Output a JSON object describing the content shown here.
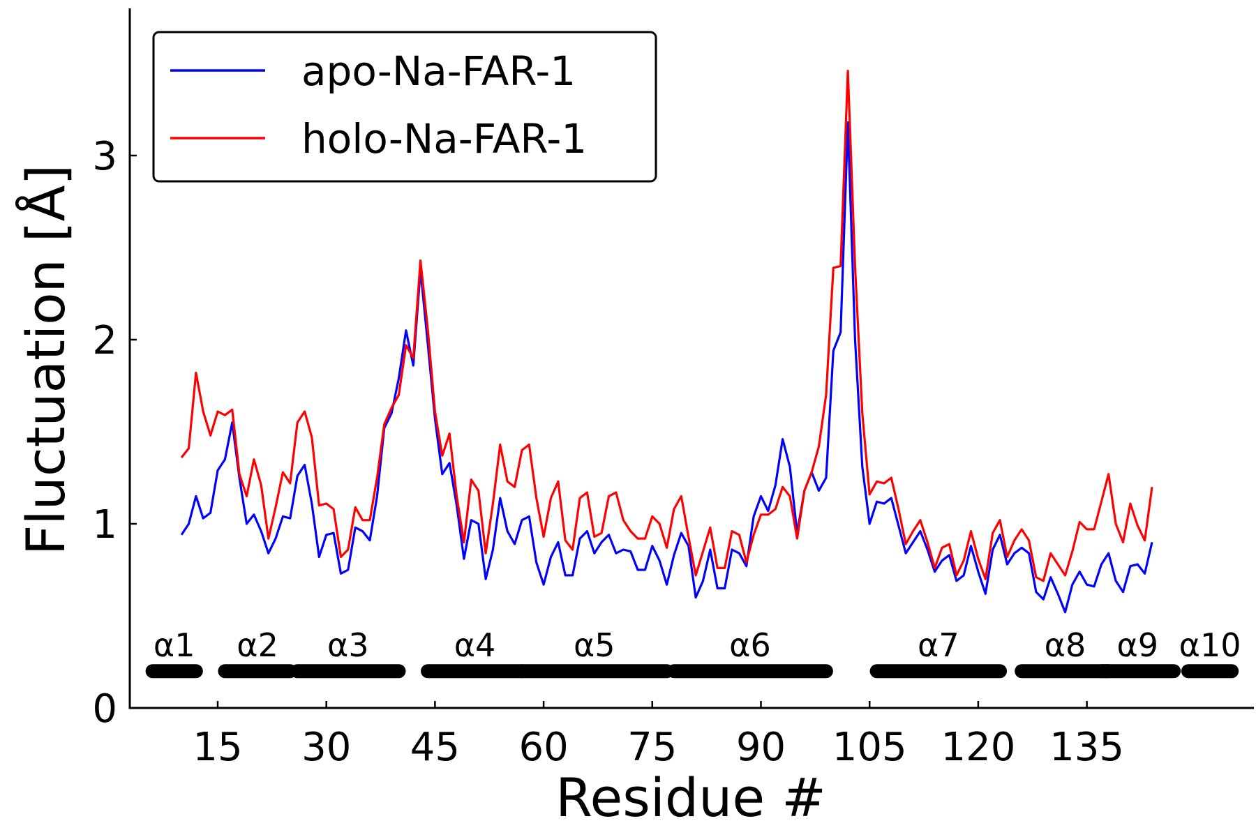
{
  "chart_data": {
    "type": "line",
    "title": "",
    "xlabel": "Residue #",
    "ylabel": "Fluctuation [Å]",
    "xlim": [
      0,
      147
    ],
    "ylim": [
      0,
      3.8
    ],
    "xticks": [
      15,
      30,
      45,
      60,
      75,
      90,
      105,
      120,
      135
    ],
    "xtick_labels": [
      "15",
      "30",
      "45",
      "60",
      "75",
      "90",
      "105",
      "120",
      "135"
    ],
    "yticks": [
      0,
      1,
      2,
      3
    ],
    "ytick_labels": [
      "0",
      "1",
      "2",
      "3"
    ],
    "grid": false,
    "legend_position": "top-left",
    "x_start": 10,
    "series": [
      {
        "name": "apo-Na-FAR-1",
        "color": "#0000ff",
        "values": [
          0.94,
          1.0,
          1.15,
          1.03,
          1.06,
          1.29,
          1.35,
          1.55,
          1.25,
          1.0,
          1.05,
          0.96,
          0.84,
          0.92,
          1.04,
          1.03,
          1.26,
          1.32,
          1.11,
          0.82,
          0.94,
          0.95,
          0.73,
          0.75,
          0.98,
          0.96,
          0.91,
          1.15,
          1.52,
          1.6,
          1.79,
          2.05,
          1.86,
          2.38,
          1.98,
          1.57,
          1.27,
          1.33,
          1.1,
          0.81,
          1.02,
          1.0,
          0.7,
          0.86,
          1.14,
          0.96,
          0.89,
          1.02,
          1.04,
          0.79,
          0.67,
          0.82,
          0.9,
          0.72,
          0.72,
          0.92,
          0.96,
          0.84,
          0.9,
          0.94,
          0.84,
          0.86,
          0.85,
          0.75,
          0.75,
          0.88,
          0.8,
          0.67,
          0.83,
          0.95,
          0.88,
          0.6,
          0.69,
          0.86,
          0.65,
          0.65,
          0.86,
          0.84,
          0.77,
          1.04,
          1.15,
          1.07,
          1.21,
          1.46,
          1.31,
          0.95,
          1.18,
          1.28,
          1.18,
          1.25,
          1.94,
          2.04,
          3.18,
          2.0,
          1.31,
          1.0,
          1.12,
          1.11,
          1.14,
          0.99,
          0.84,
          0.9,
          0.96,
          0.86,
          0.74,
          0.8,
          0.83,
          0.69,
          0.72,
          0.88,
          0.74,
          0.62,
          0.86,
          0.94,
          0.78,
          0.84,
          0.87,
          0.84,
          0.63,
          0.59,
          0.71,
          0.62,
          0.52,
          0.67,
          0.74,
          0.67,
          0.66,
          0.78,
          0.84,
          0.69,
          0.63,
          0.77,
          0.78,
          0.73,
          0.9
        ]
      },
      {
        "name": "holo-Na-FAR-1",
        "color": "#ff0000",
        "values": [
          1.36,
          1.41,
          1.82,
          1.61,
          1.48,
          1.61,
          1.59,
          1.62,
          1.27,
          1.15,
          1.35,
          1.21,
          0.92,
          1.09,
          1.28,
          1.22,
          1.55,
          1.61,
          1.47,
          1.1,
          1.11,
          1.08,
          0.82,
          0.86,
          1.09,
          1.02,
          1.02,
          1.25,
          1.54,
          1.63,
          1.7,
          1.97,
          1.9,
          2.43,
          2.06,
          1.61,
          1.37,
          1.49,
          1.15,
          0.9,
          1.24,
          1.18,
          0.84,
          1.11,
          1.43,
          1.23,
          1.2,
          1.4,
          1.43,
          1.14,
          0.93,
          1.14,
          1.23,
          0.91,
          0.86,
          1.14,
          1.17,
          0.93,
          0.95,
          1.15,
          1.17,
          1.02,
          0.96,
          0.92,
          0.92,
          1.04,
          1.0,
          0.87,
          1.08,
          1.15,
          0.93,
          0.72,
          0.85,
          0.98,
          0.76,
          0.76,
          0.96,
          0.94,
          0.79,
          0.94,
          1.05,
          1.05,
          1.08,
          1.2,
          1.15,
          0.92,
          1.18,
          1.28,
          1.42,
          1.7,
          2.39,
          2.4,
          3.46,
          2.4,
          1.6,
          1.16,
          1.23,
          1.22,
          1.25,
          1.08,
          0.89,
          0.96,
          1.02,
          0.9,
          0.76,
          0.87,
          0.89,
          0.72,
          0.8,
          0.96,
          0.81,
          0.7,
          0.95,
          1.02,
          0.82,
          0.91,
          0.97,
          0.91,
          0.71,
          0.69,
          0.84,
          0.78,
          0.72,
          0.85,
          1.01,
          0.97,
          0.97,
          1.12,
          1.27,
          1.0,
          0.9,
          1.11,
          0.99,
          0.91,
          1.2
        ]
      }
    ],
    "helices": [
      {
        "label": "α1",
        "start": 6,
        "end": 12
      },
      {
        "label": "α2",
        "start": 16,
        "end": 25
      },
      {
        "label": "α3",
        "start": 26,
        "end": 40
      },
      {
        "label": "α4",
        "start": 44,
        "end": 57
      },
      {
        "label": "α5",
        "start": 57,
        "end": 77
      },
      {
        "label": "α6",
        "start": 78,
        "end": 99
      },
      {
        "label": "α7",
        "start": 106,
        "end": 123
      },
      {
        "label": "α8",
        "start": 126,
        "end": 138
      },
      {
        "label": "α9",
        "start": 137,
        "end": 147
      },
      {
        "label": "α10",
        "start": 149,
        "end": 155
      }
    ]
  }
}
